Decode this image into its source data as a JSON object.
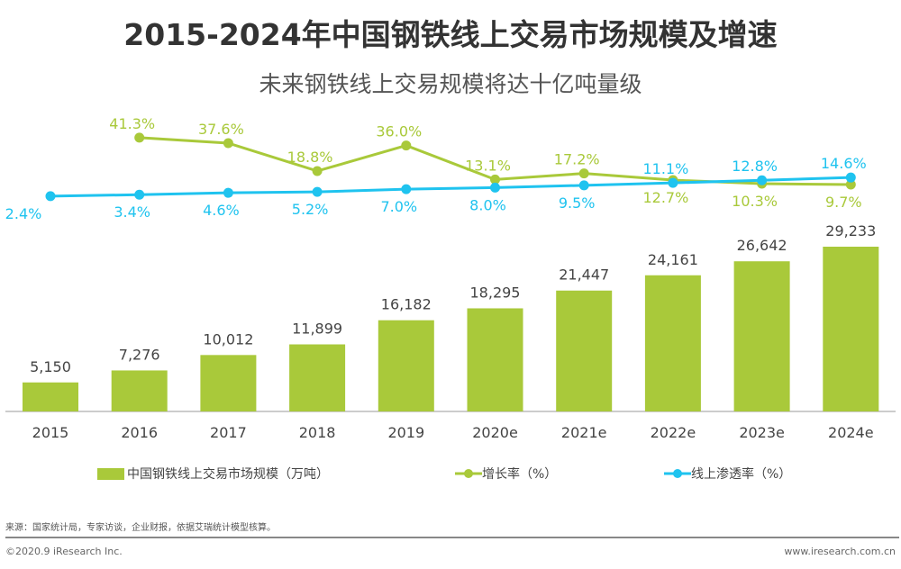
{
  "chart_data": {
    "type": "bar",
    "title": "2015-2024年中国钢铁线上交易市场规模及增速",
    "subtitle": "未来钢铁线上交易规模将达十亿吨量级",
    "categories": [
      "2015",
      "2016",
      "2017",
      "2018",
      "2019",
      "2020e",
      "2021e",
      "2022e",
      "2023e",
      "2024e"
    ],
    "series": [
      {
        "name": "中国钢铁线上交易市场规模（万吨）",
        "type": "bar",
        "color": "#a9c93a",
        "values": [
          5150,
          7276,
          10012,
          11899,
          16182,
          18295,
          21447,
          24161,
          26642,
          29233
        ],
        "labels": [
          "5,150",
          "7,276",
          "10,012",
          "11,899",
          "16,182",
          "18,295",
          "21,447",
          "24,161",
          "26,642",
          "29,233"
        ]
      },
      {
        "name": "增长率（%）",
        "type": "line",
        "color": "#a9c93a",
        "values": [
          null,
          41.3,
          37.6,
          18.8,
          36.0,
          13.1,
          17.2,
          12.7,
          10.3,
          9.7
        ],
        "labels": [
          "",
          "41.3%",
          "37.6%",
          "18.8%",
          "36.0%",
          "13.1%",
          "17.2%",
          "12.7%",
          "10.3%",
          "9.7%"
        ],
        "label_pos": [
          "",
          "above",
          "above",
          "above",
          "above",
          "above",
          "above",
          "below",
          "below",
          "below"
        ]
      },
      {
        "name": "线上渗透率（%）",
        "type": "line",
        "color": "#1fc3ef",
        "values": [
          2.4,
          3.4,
          4.6,
          5.2,
          7.0,
          8.0,
          9.5,
          11.1,
          12.8,
          14.6
        ],
        "labels": [
          "2.4%",
          "3.4%",
          "4.6%",
          "5.2%",
          "7.0%",
          "8.0%",
          "9.5%",
          "11.1%",
          "12.8%",
          "14.6%"
        ],
        "label_pos": [
          "below",
          "below",
          "below",
          "below",
          "below",
          "below",
          "below",
          "above",
          "above",
          "above"
        ]
      }
    ],
    "grid": false,
    "legend": "bottom"
  },
  "footer": {
    "source": "来源：国家统计局，专家访谈，企业财报，依据艾瑞统计模型核算。",
    "copyright": "©2020.9 iResearch Inc.",
    "site": "www.iresearch.com.cn"
  }
}
